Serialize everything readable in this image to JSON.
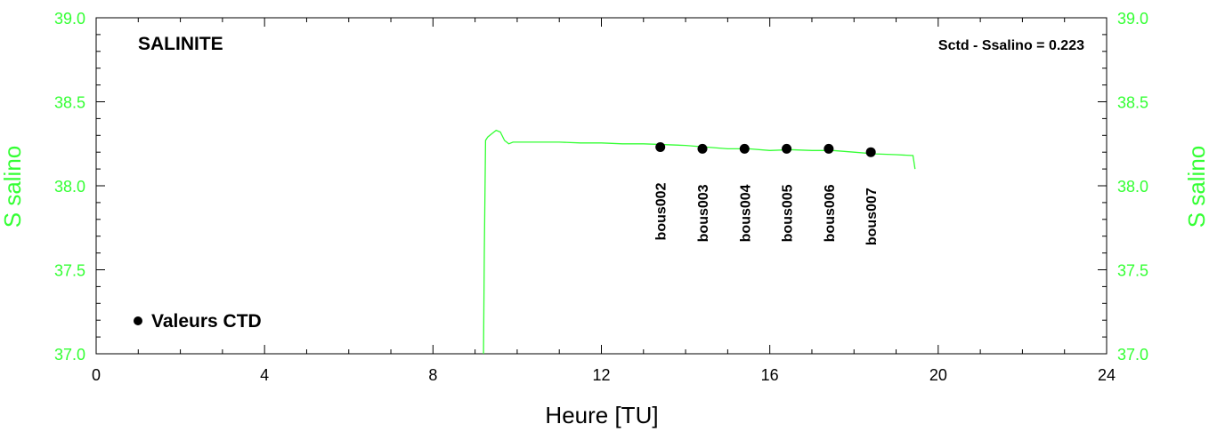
{
  "chart_data": {
    "type": "line",
    "title": "SALINITE",
    "annotation": "Sctd - Ssalino = 0.223",
    "xlabel": "Heure [TU]",
    "ylabel_left": "S salino",
    "ylabel_right": "S salino",
    "xlim": [
      0,
      24
    ],
    "ylim": [
      37.0,
      39.0
    ],
    "x_ticks": [
      "0",
      "4",
      "8",
      "12",
      "16",
      "20",
      "24"
    ],
    "y_ticks": [
      "37.0",
      "37.5",
      "38.0",
      "38.5",
      "39.0"
    ],
    "colors": {
      "series": "#33ff33",
      "points": "#000000"
    },
    "series": [
      {
        "x": [
          9.2,
          9.22,
          9.25,
          9.3,
          9.4,
          9.5,
          9.6,
          9.7,
          9.8,
          9.9,
          10.0,
          10.5,
          11.0,
          11.5,
          12.0,
          12.5,
          13.0,
          13.5,
          14.0,
          14.5,
          15.0,
          15.5,
          16.0,
          16.5,
          17.0,
          17.5,
          18.0,
          18.5,
          19.0,
          19.4,
          19.45
        ],
        "y": [
          37.0,
          37.6,
          38.27,
          38.29,
          38.31,
          38.33,
          38.32,
          38.27,
          38.25,
          38.26,
          38.26,
          38.26,
          38.26,
          38.255,
          38.255,
          38.25,
          38.25,
          38.245,
          38.24,
          38.23,
          38.22,
          38.22,
          38.21,
          38.215,
          38.21,
          38.21,
          38.2,
          38.19,
          38.185,
          38.18,
          38.1
        ]
      }
    ],
    "legend": {
      "label": "Valeurs CTD",
      "position": "bottom-left"
    },
    "ctd_points": [
      {
        "label": "bous002",
        "x": 13.4,
        "y": 38.23
      },
      {
        "label": "bous003",
        "x": 14.4,
        "y": 38.22
      },
      {
        "label": "bous004",
        "x": 15.4,
        "y": 38.22
      },
      {
        "label": "bous005",
        "x": 16.4,
        "y": 38.22
      },
      {
        "label": "bous006",
        "x": 17.4,
        "y": 38.22
      },
      {
        "label": "bous007",
        "x": 18.4,
        "y": 38.2
      }
    ],
    "grid": false
  }
}
